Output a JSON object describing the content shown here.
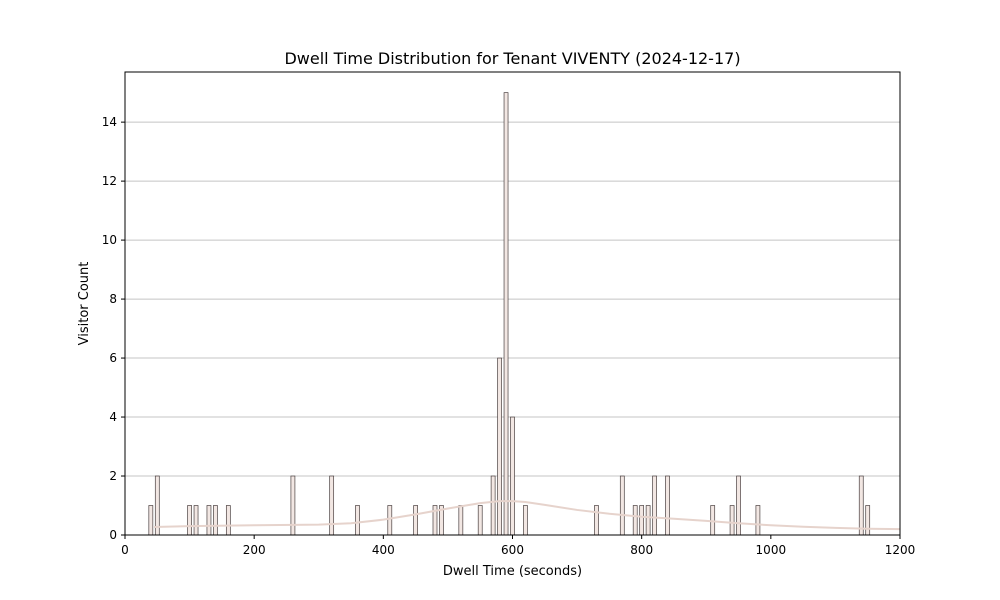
{
  "chart_data": {
    "type": "bar",
    "title": "Dwell Time Distribution for Tenant VIVENTY (2024-12-17)",
    "xlabel": "Dwell Time (seconds)",
    "ylabel": "Visitor Count",
    "xlim": [
      0,
      1200
    ],
    "ylim": [
      0,
      15.7
    ],
    "xticks": [
      0,
      200,
      400,
      600,
      800,
      1000,
      1200
    ],
    "yticks": [
      0,
      2,
      4,
      6,
      8,
      10,
      12,
      14
    ],
    "grid": "horizontal",
    "bin_width": 10,
    "bins": [
      {
        "x": 40,
        "count": 1
      },
      {
        "x": 50,
        "count": 2
      },
      {
        "x": 100,
        "count": 1
      },
      {
        "x": 110,
        "count": 1
      },
      {
        "x": 130,
        "count": 1
      },
      {
        "x": 140,
        "count": 1
      },
      {
        "x": 160,
        "count": 1
      },
      {
        "x": 260,
        "count": 2
      },
      {
        "x": 320,
        "count": 2
      },
      {
        "x": 360,
        "count": 1
      },
      {
        "x": 410,
        "count": 1
      },
      {
        "x": 450,
        "count": 1
      },
      {
        "x": 480,
        "count": 1
      },
      {
        "x": 490,
        "count": 1
      },
      {
        "x": 520,
        "count": 1
      },
      {
        "x": 550,
        "count": 1
      },
      {
        "x": 570,
        "count": 2
      },
      {
        "x": 580,
        "count": 6
      },
      {
        "x": 590,
        "count": 15
      },
      {
        "x": 600,
        "count": 4
      },
      {
        "x": 620,
        "count": 1
      },
      {
        "x": 730,
        "count": 1
      },
      {
        "x": 770,
        "count": 2
      },
      {
        "x": 790,
        "count": 1
      },
      {
        "x": 800,
        "count": 1
      },
      {
        "x": 810,
        "count": 1
      },
      {
        "x": 820,
        "count": 2
      },
      {
        "x": 840,
        "count": 2
      },
      {
        "x": 910,
        "count": 1
      },
      {
        "x": 940,
        "count": 1
      },
      {
        "x": 950,
        "count": 2
      },
      {
        "x": 980,
        "count": 1
      },
      {
        "x": 1140,
        "count": 2
      },
      {
        "x": 1150,
        "count": 1
      }
    ],
    "kde": {
      "x": [
        45,
        100,
        200,
        300,
        350,
        400,
        450,
        500,
        550,
        580,
        600,
        620,
        650,
        700,
        750,
        800,
        850,
        900,
        950,
        1000,
        1050,
        1100,
        1150,
        1200
      ],
      "y": [
        0.27,
        0.3,
        0.33,
        0.35,
        0.4,
        0.52,
        0.7,
        0.9,
        1.08,
        1.15,
        1.15,
        1.12,
        1.02,
        0.85,
        0.72,
        0.62,
        0.55,
        0.48,
        0.4,
        0.33,
        0.28,
        0.24,
        0.21,
        0.2
      ]
    },
    "colors": {
      "bar_fill": "#f2e7e3",
      "bar_edge": "#4a4040",
      "kde_line": "#e6d3cc"
    }
  }
}
